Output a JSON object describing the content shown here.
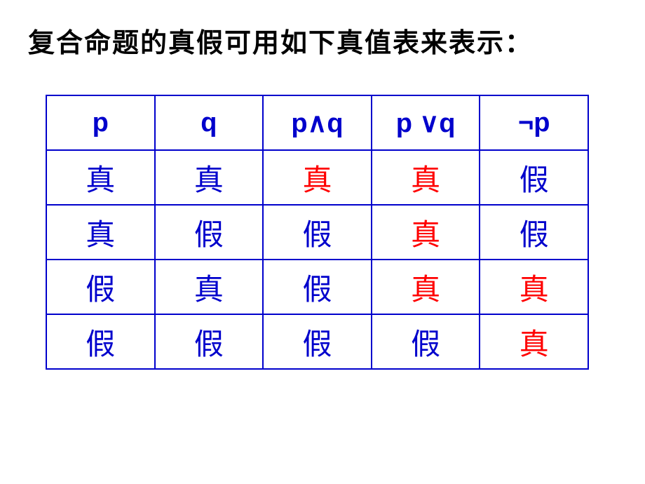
{
  "title": "复合命题的真假可用如下真值表来表示：",
  "table": {
    "type": "table",
    "border_color": "#0000cc",
    "header_color": "#0000cc",
    "header_fontsize": 38,
    "cell_fontsize": 42,
    "columns": [
      "p",
      "q",
      "p∧q",
      "p ∨q",
      "¬p"
    ],
    "rows": [
      [
        {
          "value": "真",
          "color": "#0000cc"
        },
        {
          "value": "真",
          "color": "#0000cc"
        },
        {
          "value": "真",
          "color": "#ff0000"
        },
        {
          "value": "真",
          "color": "#ff0000"
        },
        {
          "value": "假",
          "color": "#0000cc"
        }
      ],
      [
        {
          "value": "真",
          "color": "#0000cc"
        },
        {
          "value": "假",
          "color": "#0000cc"
        },
        {
          "value": "假",
          "color": "#0000cc"
        },
        {
          "value": "真",
          "color": "#ff0000"
        },
        {
          "value": "假",
          "color": "#0000cc"
        }
      ],
      [
        {
          "value": "假",
          "color": "#0000cc"
        },
        {
          "value": "真",
          "color": "#0000cc"
        },
        {
          "value": "假",
          "color": "#0000cc"
        },
        {
          "value": "真",
          "color": "#ff0000"
        },
        {
          "value": "真",
          "color": "#ff0000"
        }
      ],
      [
        {
          "value": "假",
          "color": "#0000cc"
        },
        {
          "value": "假",
          "color": "#0000cc"
        },
        {
          "value": "假",
          "color": "#0000cc"
        },
        {
          "value": "假",
          "color": "#0000cc"
        },
        {
          "value": "真",
          "color": "#ff0000"
        }
      ]
    ]
  }
}
